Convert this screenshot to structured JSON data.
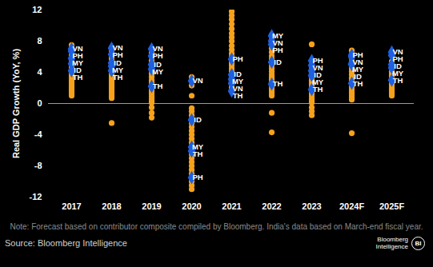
{
  "chart_data": {
    "type": "scatter",
    "y_label": "Real GDP Growth (YoY, %)",
    "note": "Note: Forecast based on contributor composite compiled by Bloomberg. India's data based on March-end fiscal year.",
    "source": "Source: Bloomberg Intelligence",
    "brand": [
      "Bloomberg",
      "Intelligence"
    ],
    "brand_mark": "BI",
    "categories": [
      "2017",
      "2018",
      "2019",
      "2020",
      "2021",
      "2022",
      "2023",
      "2024F",
      "2025F"
    ],
    "ylim": [
      -12,
      12
    ],
    "yticks": [
      -12,
      -8,
      -4,
      0,
      4,
      8,
      12
    ],
    "grid": false,
    "series": [
      {
        "color": "#f7a21b",
        "marker": "circle",
        "values": [
          [
            7.5,
            7.1,
            6.7,
            6.2,
            5.9,
            5.5,
            5.2,
            4.8,
            4.5,
            4.2,
            3.9,
            3.6,
            3.3,
            3.0,
            2.7,
            2.4,
            2.2,
            2.0,
            1.8,
            1.6,
            1.4,
            1.2,
            1.0
          ],
          [
            7.2,
            6.8,
            6.3,
            6.0,
            5.7,
            5.3,
            5.0,
            4.7,
            4.4,
            4.1,
            3.8,
            3.5,
            3.2,
            2.9,
            2.6,
            2.3,
            2.1,
            1.9,
            1.6,
            1.4,
            1.1,
            0.9,
            0.7,
            -2.5
          ],
          [
            7.0,
            6.5,
            6.0,
            5.5,
            5.0,
            4.6,
            4.2,
            3.8,
            3.4,
            3.0,
            2.7,
            2.4,
            2.1,
            1.8,
            1.5,
            1.2,
            0.9,
            0.6,
            0.3,
            0.1,
            -0.5,
            -1.2,
            -1.8
          ],
          [
            3.4,
            2.9,
            2.3,
            1.0,
            -0.6,
            -1.0,
            -1.5,
            -2.0,
            -2.5,
            -3.0,
            -3.5,
            -4.0,
            -4.5,
            -5.0,
            -5.5,
            -6.0,
            -6.5,
            -7.0,
            -7.5,
            -8.0,
            -8.5,
            -9.0,
            -9.5,
            -10.0,
            -10.5,
            -11.0
          ],
          [
            11.8,
            11.3,
            10.8,
            10.2,
            9.6,
            9.0,
            8.5,
            8.0,
            7.4,
            6.9,
            6.4,
            6.0,
            5.6,
            5.2,
            4.9,
            4.5,
            4.1,
            3.7,
            3.3,
            2.9,
            2.5,
            2.1,
            1.8
          ],
          [
            8.8,
            8.2,
            7.6,
            7.1,
            6.6,
            6.1,
            5.7,
            5.3,
            4.9,
            4.5,
            4.1,
            3.7,
            3.4,
            3.1,
            2.8,
            2.5,
            2.2,
            1.9,
            1.6,
            1.3,
            1.0,
            -1.2,
            -3.7
          ],
          [
            7.6,
            5.4,
            5.0,
            4.6,
            4.2,
            3.9,
            3.6,
            3.3,
            3.0,
            2.7,
            2.4,
            2.1,
            1.8,
            1.5,
            1.2,
            0.9,
            0.6,
            0.3,
            0.1,
            -0.5,
            -1.0,
            -1.5
          ],
          [
            6.8,
            6.3,
            5.8,
            5.3,
            4.9,
            4.5,
            4.1,
            3.7,
            3.3,
            3.0,
            2.7,
            2.4,
            2.1,
            1.8,
            1.5,
            1.2,
            1.0,
            0.8,
            0.5,
            -3.8
          ],
          [
            6.6,
            5.4,
            4.9,
            4.5,
            4.1,
            3.8,
            3.5,
            3.2,
            2.9,
            2.6,
            2.3,
            2.0,
            1.8,
            1.6,
            1.4,
            1.2,
            1.0
          ]
        ]
      },
      {
        "name": "VN",
        "color": "#1f5fe0",
        "marker": "diamond",
        "values": [
          7.0,
          7.1,
          7.0,
          2.9,
          2.6,
          8.0,
          4.9,
          6.0,
          6.6
        ]
      },
      {
        "name": "PH",
        "color": "#1f5fe0",
        "marker": "diamond",
        "values": [
          6.7,
          6.3,
          6.1,
          -9.5,
          5.7,
          7.6,
          5.5,
          6.2,
          6.2
        ]
      },
      {
        "name": "MY",
        "color": "#1f5fe0",
        "marker": "diamond",
        "values": [
          5.8,
          4.8,
          4.4,
          -5.6,
          3.1,
          8.7,
          3.6,
          5.1,
          4.6
        ]
      },
      {
        "name": "ID",
        "color": "#1f5fe0",
        "marker": "diamond",
        "values": [
          5.1,
          5.2,
          5.0,
          -2.1,
          3.7,
          5.3,
          4.2,
          5.0,
          5.0
        ]
      },
      {
        "name": "TH",
        "color": "#1f5fe0",
        "marker": "diamond",
        "values": [
          4.2,
          4.2,
          2.2,
          -6.1,
          1.6,
          2.5,
          1.8,
          2.6,
          3.0
        ]
      }
    ]
  }
}
